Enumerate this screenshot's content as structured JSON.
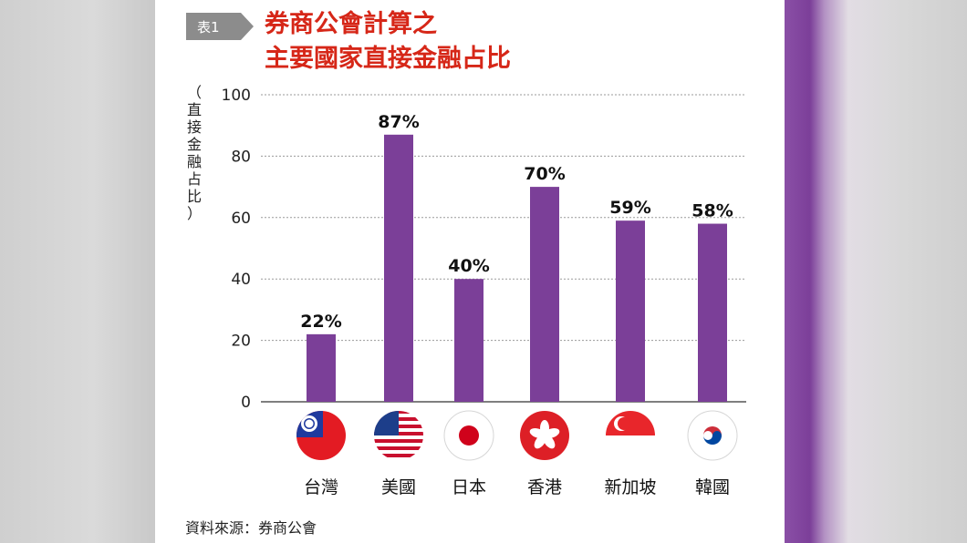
{
  "tag": {
    "label": "表1"
  },
  "title": {
    "line1": "券商公會計算之",
    "line2": "主要國家直接金融占比"
  },
  "source": "資料來源：券商公會",
  "colors": {
    "bar": "#7b3f98",
    "title": "#d62718",
    "tag": "#8c8c8c"
  },
  "chart_data": {
    "type": "bar",
    "categories": [
      "台灣",
      "美國",
      "日本",
      "香港",
      "新加坡",
      "韓國"
    ],
    "values": [
      22,
      87,
      40,
      70,
      59,
      58
    ],
    "value_labels": [
      "22%",
      "87%",
      "40%",
      "70%",
      "59%",
      "58%"
    ],
    "ylabel": "（直接金融占比）",
    "ylim": [
      0,
      100
    ],
    "yticks": [
      0,
      20,
      40,
      60,
      80,
      100
    ],
    "grid": true,
    "flags": [
      "taiwan-flag-icon",
      "usa-flag-icon",
      "japan-flag-icon",
      "hong-kong-flag-icon",
      "singapore-flag-icon",
      "korea-flag-icon"
    ]
  }
}
